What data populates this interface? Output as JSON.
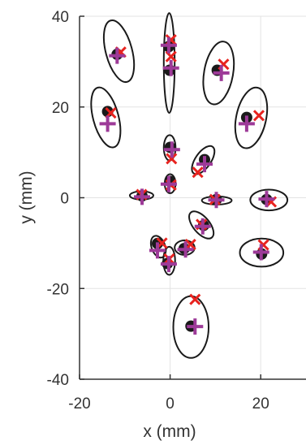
{
  "chart_data": {
    "type": "scatter",
    "title": "",
    "xlabel": "x (mm)",
    "ylabel": "y (mm)",
    "xlim": [
      -20,
      30
    ],
    "ylim": [
      -40,
      40
    ],
    "x_ticks": [
      "-20",
      "0",
      "20"
    ],
    "y_ticks": [
      "-40",
      "-20",
      "0",
      "20",
      "40"
    ],
    "grid": true,
    "legend": "none",
    "colors": {
      "dot": "#1a1a1a",
      "ellipse": "#1a1a1a",
      "cross": "#e8231f",
      "plus": "#9d3a98",
      "grid": "#e3e3e3",
      "axis": "#333333"
    },
    "points": [
      {
        "dot": [
          -13.8,
          19
        ],
        "cross": [
          -13.1,
          18.7
        ],
        "plus": [
          -13.8,
          16.3
        ],
        "ellipse": {
          "center": [
            -14.2,
            17.7
          ],
          "rx": 2.8,
          "ry": 6.8,
          "angle_deg": -15
        }
      },
      {
        "dot": [
          -11.7,
          31.6
        ],
        "cross": [
          -10.9,
          32.1
        ],
        "plus": [
          -11.7,
          31.3
        ],
        "ellipse": {
          "center": [
            -11.3,
            32.3
          ],
          "rx": 2.9,
          "ry": 7.0,
          "angle_deg": -15
        }
      },
      {
        "dot": [
          -0.3,
          33.3
        ],
        "cross": [
          0.2,
          34.8
        ],
        "plus": [
          -0.3,
          33.6
        ],
        "ellipse": {
          "center": [
            -0.2,
            29.7
          ],
          "rx": 1.2,
          "ry": 11.0,
          "angle_deg": 0
        }
      },
      {
        "dot": [
          -0.1,
          28.1
        ],
        "cross": [
          0.2,
          31.1
        ],
        "plus": [
          0.2,
          28.6
        ],
        "ellipse": null
      },
      {
        "dot": [
          10.4,
          28.1
        ],
        "cross": [
          11.8,
          29.4
        ],
        "plus": [
          11.3,
          27.5
        ],
        "ellipse": {
          "center": [
            10.7,
            27.5
          ],
          "rx": 3.2,
          "ry": 7.0,
          "angle_deg": 10
        }
      },
      {
        "dot": [
          16.9,
          17.7
        ],
        "cross": [
          19.6,
          18.1
        ],
        "plus": [
          16.9,
          16.3
        ],
        "ellipse": {
          "center": [
            17.9,
            17.6
          ],
          "rx": 3.3,
          "ry": 6.8,
          "angle_deg": 12
        }
      },
      {
        "dot": [
          0.0,
          11.1
        ],
        "cross": [
          0.3,
          8.6
        ],
        "plus": [
          0.4,
          10.6
        ],
        "ellipse": {
          "center": [
            -0.1,
            11.0
          ],
          "rx": 1.3,
          "ry": 2.8,
          "angle_deg": 0
        }
      },
      {
        "dot": [
          7.6,
          8.4
        ],
        "cross": [
          6.1,
          5.6
        ],
        "plus": [
          7.6,
          7.4
        ],
        "ellipse": {
          "center": [
            7.3,
            8.3
          ],
          "rx": 1.7,
          "ry": 3.6,
          "angle_deg": 35
        }
      },
      {
        "dot": [
          0.0,
          3.6
        ],
        "cross": [
          0.2,
          2.8
        ],
        "plus": [
          -0.3,
          3.0
        ],
        "ellipse": {
          "center": [
            0.0,
            3.1
          ],
          "rx": 1.2,
          "ry": 2.1,
          "angle_deg": 0
        }
      },
      {
        "dot": [
          -6.2,
          0.4
        ],
        "cross": [
          -6.3,
          0.7
        ],
        "plus": [
          -6.2,
          0.2
        ],
        "ellipse": {
          "center": [
            -6.3,
            0.5
          ],
          "rx": 2.6,
          "ry": 0.9,
          "angle_deg": 0
        }
      },
      {
        "dot": [
          10.2,
          -0.4
        ],
        "cross": [
          9.9,
          -0.4
        ],
        "plus": [
          10.2,
          -0.5
        ],
        "ellipse": {
          "center": [
            10.3,
            -0.6
          ],
          "rx": 3.3,
          "ry": 0.9,
          "angle_deg": 0
        }
      },
      {
        "dot": [
          21.3,
          -0.4
        ],
        "cross": [
          22.3,
          -0.9
        ],
        "plus": [
          21.3,
          -0.3
        ],
        "ellipse": {
          "center": [
            21.8,
            -0.5
          ],
          "rx": 4.1,
          "ry": 2.3,
          "angle_deg": 0
        }
      },
      {
        "dot": [
          7.4,
          -6.1
        ],
        "cross": [
          6.9,
          -5.9
        ],
        "plus": [
          7.2,
          -6.3
        ],
        "ellipse": {
          "center": [
            6.9,
            -6.0
          ],
          "rx": 1.8,
          "ry": 3.6,
          "angle_deg": -40
        }
      },
      {
        "dot": [
          -2.8,
          -10.1
        ],
        "cross": [
          -1.8,
          -10.0
        ],
        "plus": [
          -2.8,
          -11.6
        ],
        "ellipse": {
          "center": [
            -2.6,
            -10.8
          ],
          "rx": 1.5,
          "ry": 2.5,
          "angle_deg": -20
        }
      },
      {
        "dot": [
          3.1,
          -11.2
        ],
        "cross": [
          4.5,
          -10.3
        ],
        "plus": [
          3.4,
          -11.4
        ],
        "ellipse": {
          "center": [
            3.2,
            -11.0
          ],
          "rx": 2.2,
          "ry": 1.6,
          "angle_deg": 0
        }
      },
      {
        "dot": [
          20.2,
          -12.4
        ],
        "cross": [
          20.6,
          -10.4
        ],
        "plus": [
          20.1,
          -12.0
        ],
        "ellipse": {
          "center": [
            20.2,
            -12.1
          ],
          "rx": 4.8,
          "ry": 3.1,
          "angle_deg": 0
        }
      },
      {
        "dot": [
          -0.6,
          -14.5
        ],
        "cross": [
          -0.2,
          -13.5
        ],
        "plus": [
          -0.3,
          -14.6
        ],
        "ellipse": {
          "center": [
            -0.2,
            -13.9
          ],
          "rx": 1.3,
          "ry": 3.1,
          "angle_deg": 0
        }
      },
      {
        "dot": [
          4.6,
          -28.3
        ],
        "cross": [
          5.5,
          -22.4
        ],
        "plus": [
          5.5,
          -28.4
        ],
        "ellipse": {
          "center": [
            4.6,
            -28.5
          ],
          "rx": 3.9,
          "ry": 6.8,
          "angle_deg": 0
        }
      }
    ]
  }
}
